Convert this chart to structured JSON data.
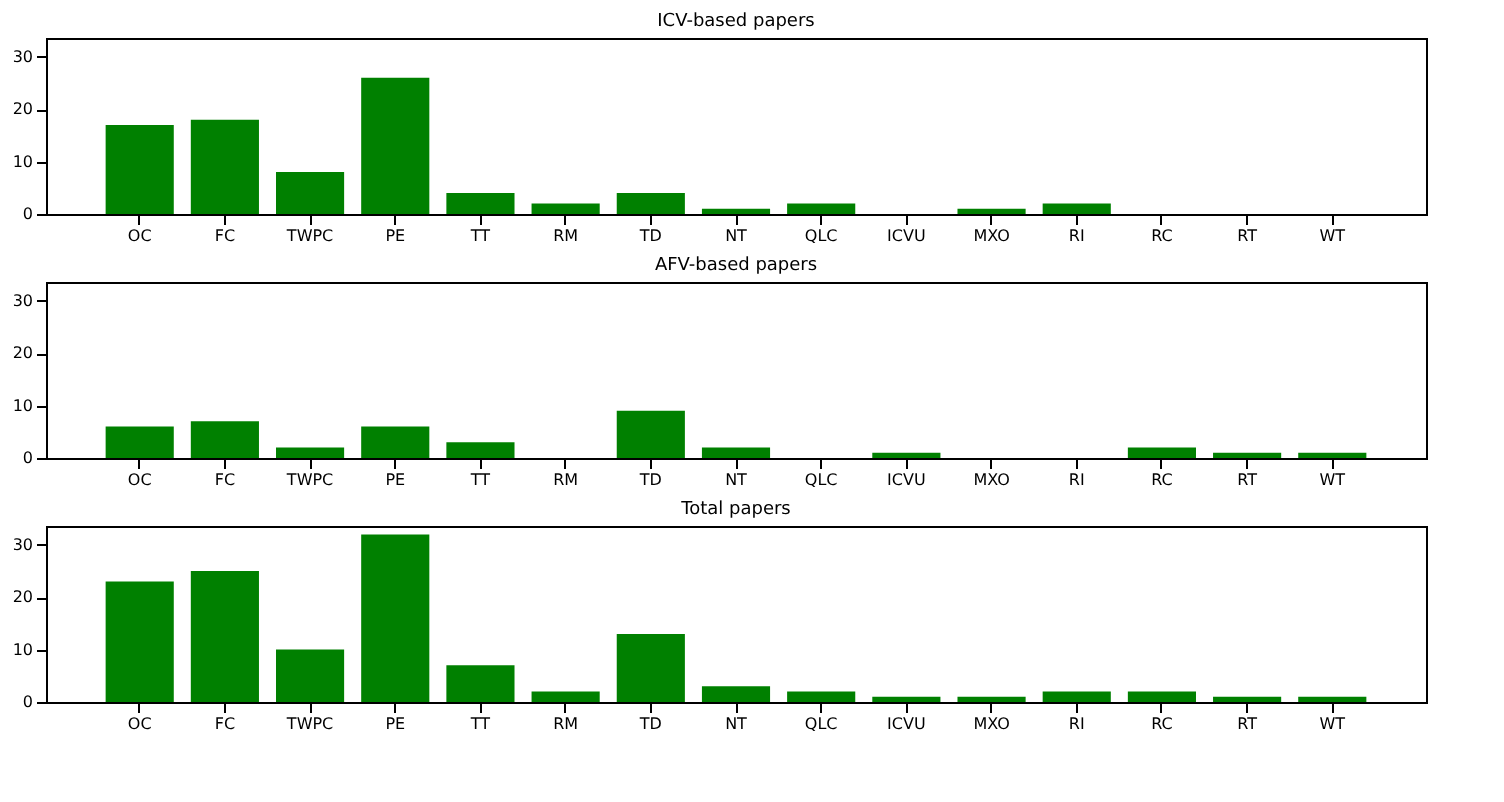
{
  "chart_data": [
    {
      "type": "bar",
      "title": "ICV-based papers",
      "categories": [
        "OC",
        "FC",
        "TWPC",
        "PE",
        "TT",
        "RM",
        "TD",
        "NT",
        "QLC",
        "ICVU",
        "MXO",
        "RI",
        "RC",
        "RT",
        "WT"
      ],
      "values": [
        17,
        18,
        8,
        26,
        4,
        2,
        4,
        1,
        2,
        0,
        1,
        2,
        0,
        0,
        0
      ],
      "color": "#008000",
      "ylim": [
        0,
        33.6
      ],
      "yticks": [
        0,
        10,
        20,
        30
      ],
      "grid": false
    },
    {
      "type": "bar",
      "title": "AFV-based papers",
      "categories": [
        "OC",
        "FC",
        "TWPC",
        "PE",
        "TT",
        "RM",
        "TD",
        "NT",
        "QLC",
        "ICVU",
        "MXO",
        "RI",
        "RC",
        "RT",
        "WT"
      ],
      "values": [
        6,
        7,
        2,
        6,
        3,
        0,
        9,
        2,
        0,
        1,
        0,
        0,
        2,
        1,
        1
      ],
      "color": "#008000",
      "ylim": [
        0,
        33.6
      ],
      "yticks": [
        0,
        10,
        20,
        30
      ],
      "grid": false
    },
    {
      "type": "bar",
      "title": "Total papers",
      "categories": [
        "OC",
        "FC",
        "TWPC",
        "PE",
        "TT",
        "RM",
        "TD",
        "NT",
        "QLC",
        "ICVU",
        "MXO",
        "RI",
        "RC",
        "RT",
        "WT"
      ],
      "values": [
        23,
        25,
        10,
        32,
        7,
        2,
        13,
        3,
        2,
        1,
        1,
        2,
        2,
        1,
        1
      ],
      "color": "#008000",
      "ylim": [
        0,
        33.6
      ],
      "yticks": [
        0,
        10,
        20,
        30
      ],
      "grid": false
    }
  ]
}
